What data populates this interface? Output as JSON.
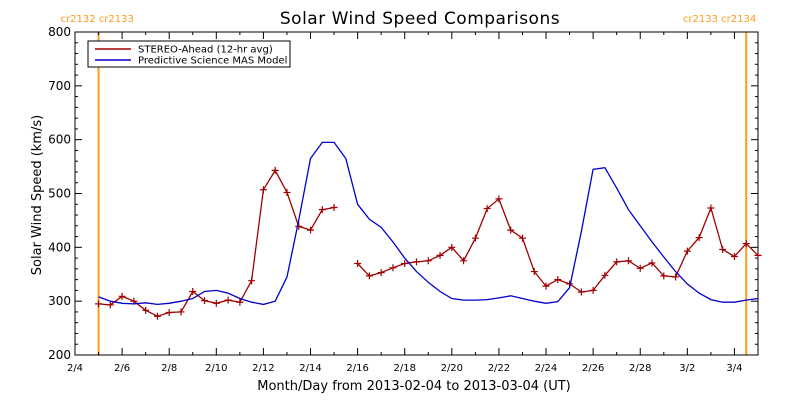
{
  "chart_data": {
    "type": "line",
    "title": "Solar Wind Speed Comparisons",
    "xlabel": "Month/Day from 2013-02-04 to 2013-03-04 (UT)",
    "ylabel": "Solar Wind Speed (km/s)",
    "xlim": [
      "2013-02-04",
      "2013-03-05"
    ],
    "ylim": [
      200,
      800
    ],
    "x_ticks": [
      "2/4",
      "2/6",
      "2/8",
      "2/10",
      "2/12",
      "2/14",
      "2/16",
      "2/18",
      "2/20",
      "2/22",
      "2/24",
      "2/26",
      "2/28",
      "3/2",
      "3/4"
    ],
    "x_tick_dates": [
      "2013-02-04",
      "2013-02-06",
      "2013-02-08",
      "2013-02-10",
      "2013-02-12",
      "2013-02-14",
      "2013-02-16",
      "2013-02-18",
      "2013-02-20",
      "2013-02-22",
      "2013-02-24",
      "2013-02-26",
      "2013-02-28",
      "2013-03-02",
      "2013-03-04"
    ],
    "y_ticks": [
      "200",
      "300",
      "400",
      "500",
      "600",
      "700",
      "800"
    ],
    "legend_position": "top-left",
    "carrington_markers": [
      {
        "date": "2013-02-05T00:00",
        "labels": [
          "cr2132",
          "cr2133"
        ],
        "color": "#ff9a1a"
      },
      {
        "date": "2013-03-04T12:00",
        "labels": [
          "cr2133",
          "cr2134"
        ],
        "color": "#ff9a1a"
      }
    ],
    "series": [
      {
        "name": "STEREO-Ahead (12-hr avg)",
        "color": "#a00000",
        "marker": "plus",
        "points": [
          [
            "2013-02-05T00:00",
            295
          ],
          [
            "2013-02-05T12:00",
            293
          ],
          [
            "2013-02-06T00:00",
            309
          ],
          [
            "2013-02-06T12:00",
            300
          ],
          [
            "2013-02-07T00:00",
            283
          ],
          [
            "2013-02-07T12:00",
            272
          ],
          [
            "2013-02-08T00:00",
            279
          ],
          [
            "2013-02-08T12:00",
            280
          ],
          [
            "2013-02-09T00:00",
            318
          ],
          [
            "2013-02-09T12:00",
            301
          ],
          [
            "2013-02-10T00:00",
            296
          ],
          [
            "2013-02-10T12:00",
            302
          ],
          [
            "2013-02-11T00:00",
            298
          ],
          [
            "2013-02-11T12:00",
            338
          ],
          [
            "2013-02-12T00:00",
            507
          ],
          [
            "2013-02-12T12:00",
            543
          ],
          [
            "2013-02-13T00:00",
            502
          ],
          [
            "2013-02-13T12:00",
            439
          ],
          [
            "2013-02-14T00:00",
            432
          ],
          [
            "2013-02-14T12:00",
            470
          ],
          [
            "2013-02-15T00:00",
            474
          ],
          null,
          [
            "2013-02-16T00:00",
            370
          ],
          [
            "2013-02-16T12:00",
            347
          ],
          [
            "2013-02-17T00:00",
            353
          ],
          [
            "2013-02-17T12:00",
            362
          ],
          [
            "2013-02-18T00:00",
            370
          ],
          [
            "2013-02-18T12:00",
            373
          ],
          [
            "2013-02-19T00:00",
            375
          ],
          [
            "2013-02-19T12:00",
            385
          ],
          [
            "2013-02-20T00:00",
            400
          ],
          [
            "2013-02-20T12:00",
            375
          ],
          [
            "2013-02-21T00:00",
            417
          ],
          [
            "2013-02-21T12:00",
            472
          ],
          [
            "2013-02-22T00:00",
            490
          ],
          [
            "2013-02-22T12:00",
            432
          ],
          [
            "2013-02-23T00:00",
            417
          ],
          [
            "2013-02-23T12:00",
            355
          ],
          [
            "2013-02-24T00:00",
            328
          ],
          [
            "2013-02-24T12:00",
            340
          ],
          [
            "2013-02-25T00:00",
            332
          ],
          [
            "2013-02-25T12:00",
            317
          ],
          [
            "2013-02-26T00:00",
            320
          ],
          [
            "2013-02-26T12:00",
            348
          ],
          [
            "2013-02-27T00:00",
            373
          ],
          [
            "2013-02-27T12:00",
            375
          ],
          [
            "2013-02-28T00:00",
            361
          ],
          [
            "2013-02-28T12:00",
            371
          ],
          [
            "2013-03-01T00:00",
            347
          ],
          [
            "2013-03-01T12:00",
            345
          ],
          [
            "2013-03-02T00:00",
            393
          ],
          [
            "2013-03-02T12:00",
            418
          ],
          [
            "2013-03-03T00:00",
            473
          ],
          [
            "2013-03-03T12:00",
            396
          ],
          [
            "2013-03-04T00:00",
            383
          ],
          [
            "2013-03-04T12:00",
            407
          ],
          [
            "2013-03-05T00:00",
            385
          ]
        ]
      },
      {
        "name": "Predictive Science MAS Model",
        "color": "#0000cc",
        "marker": "none",
        "points": [
          [
            "2013-02-05T00:00",
            308
          ],
          [
            "2013-02-05T12:00",
            300
          ],
          [
            "2013-02-06T00:00",
            296
          ],
          [
            "2013-02-06T12:00",
            295
          ],
          [
            "2013-02-07T00:00",
            297
          ],
          [
            "2013-02-07T12:00",
            294
          ],
          [
            "2013-02-08T00:00",
            296
          ],
          [
            "2013-02-08T12:00",
            300
          ],
          [
            "2013-02-09T00:00",
            305
          ],
          [
            "2013-02-09T12:00",
            318
          ],
          [
            "2013-02-10T00:00",
            320
          ],
          [
            "2013-02-10T12:00",
            315
          ],
          [
            "2013-02-11T00:00",
            305
          ],
          [
            "2013-02-11T12:00",
            298
          ],
          [
            "2013-02-12T00:00",
            294
          ],
          [
            "2013-02-12T12:00",
            300
          ],
          [
            "2013-02-13T00:00",
            345
          ],
          [
            "2013-02-13T12:00",
            450
          ],
          [
            "2013-02-14T00:00",
            565
          ],
          [
            "2013-02-14T12:00",
            595
          ],
          [
            "2013-02-15T00:00",
            595
          ],
          [
            "2013-02-15T12:00",
            565
          ],
          [
            "2013-02-16T00:00",
            480
          ],
          [
            "2013-02-16T12:00",
            452
          ],
          [
            "2013-02-17T00:00",
            437
          ],
          [
            "2013-02-17T12:00",
            410
          ],
          [
            "2013-02-18T00:00",
            380
          ],
          [
            "2013-02-18T12:00",
            355
          ],
          [
            "2013-02-19T00:00",
            335
          ],
          [
            "2013-02-19T12:00",
            318
          ],
          [
            "2013-02-20T00:00",
            305
          ],
          [
            "2013-02-20T12:00",
            302
          ],
          [
            "2013-02-21T00:00",
            302
          ],
          [
            "2013-02-21T12:00",
            303
          ],
          [
            "2013-02-22T00:00",
            306
          ],
          [
            "2013-02-22T12:00",
            310
          ],
          [
            "2013-02-23T00:00",
            305
          ],
          [
            "2013-02-23T12:00",
            300
          ],
          [
            "2013-02-24T00:00",
            296
          ],
          [
            "2013-02-24T12:00",
            299
          ],
          [
            "2013-02-25T00:00",
            325
          ],
          [
            "2013-02-25T12:00",
            430
          ],
          [
            "2013-02-26T00:00",
            545
          ],
          [
            "2013-02-26T12:00",
            548
          ],
          [
            "2013-02-27T00:00",
            510
          ],
          [
            "2013-02-27T12:00",
            470
          ],
          [
            "2013-02-28T00:00",
            440
          ],
          [
            "2013-02-28T12:00",
            410
          ],
          [
            "2013-03-01T00:00",
            382
          ],
          [
            "2013-03-01T12:00",
            355
          ],
          [
            "2013-03-02T00:00",
            332
          ],
          [
            "2013-03-02T12:00",
            315
          ],
          [
            "2013-03-03T00:00",
            303
          ],
          [
            "2013-03-03T12:00",
            298
          ],
          [
            "2013-03-04T00:00",
            298
          ],
          [
            "2013-03-04T12:00",
            302
          ],
          [
            "2013-03-05T00:00",
            305
          ]
        ]
      }
    ]
  }
}
